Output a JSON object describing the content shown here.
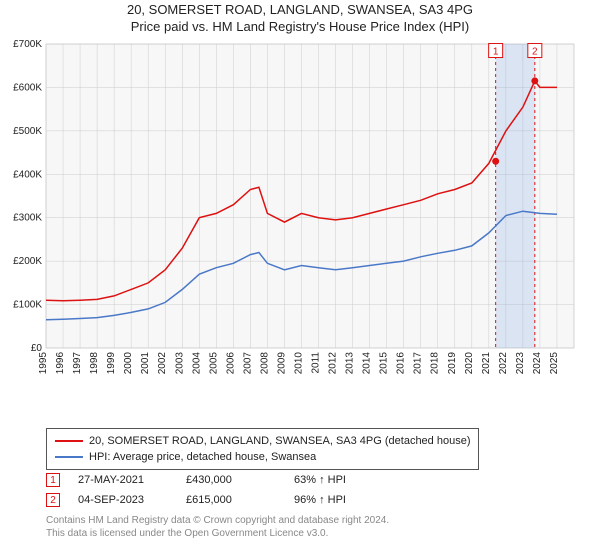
{
  "title": {
    "line1": "20, SOMERSET ROAD, LANGLAND, SWANSEA, SA3 4PG",
    "line2": "Price paid vs. HM Land Registry's House Price Index (HPI)",
    "fontsize": 13
  },
  "chart": {
    "type": "line",
    "background": "#f7f7f7",
    "grid_color": "#cccccc",
    "axis_text_color": "#222222",
    "xlim": [
      1995,
      2026
    ],
    "ylim": [
      0,
      700000
    ],
    "yticks": [
      0,
      100000,
      200000,
      300000,
      400000,
      500000,
      600000,
      700000
    ],
    "ytick_labels": [
      "£0",
      "£100K",
      "£200K",
      "£300K",
      "£400K",
      "£500K",
      "£600K",
      "£700K"
    ],
    "xticks": [
      1995,
      1996,
      1997,
      1998,
      1999,
      2000,
      2001,
      2002,
      2003,
      2004,
      2005,
      2006,
      2007,
      2008,
      2009,
      2010,
      2011,
      2012,
      2013,
      2014,
      2015,
      2016,
      2017,
      2018,
      2019,
      2020,
      2021,
      2022,
      2023,
      2024,
      2025
    ],
    "tick_fontsize": 10,
    "line_width": 1.5,
    "series": [
      {
        "key": "property",
        "color": "#dd1111",
        "label": "20, SOMERSET ROAD, LANGLAND, SWANSEA, SA3 4PG (detached house)",
        "data": [
          [
            1995,
            110000
          ],
          [
            1996,
            109000
          ],
          [
            1997,
            110000
          ],
          [
            1998,
            112000
          ],
          [
            1999,
            120000
          ],
          [
            2000,
            135000
          ],
          [
            2001,
            150000
          ],
          [
            2002,
            180000
          ],
          [
            2003,
            230000
          ],
          [
            2004,
            300000
          ],
          [
            2005,
            310000
          ],
          [
            2006,
            330000
          ],
          [
            2007,
            365000
          ],
          [
            2007.5,
            370000
          ],
          [
            2008,
            310000
          ],
          [
            2009,
            290000
          ],
          [
            2010,
            310000
          ],
          [
            2011,
            300000
          ],
          [
            2012,
            295000
          ],
          [
            2013,
            300000
          ],
          [
            2014,
            310000
          ],
          [
            2015,
            320000
          ],
          [
            2016,
            330000
          ],
          [
            2017,
            340000
          ],
          [
            2018,
            355000
          ],
          [
            2019,
            365000
          ],
          [
            2020,
            380000
          ],
          [
            2021,
            425000
          ],
          [
            2022,
            500000
          ],
          [
            2023,
            555000
          ],
          [
            2023.7,
            615000
          ],
          [
            2024,
            600000
          ],
          [
            2025,
            600000
          ]
        ]
      },
      {
        "key": "hpi",
        "color": "#4a78c8",
        "label": "HPI: Average price, detached house, Swansea",
        "data": [
          [
            1995,
            65000
          ],
          [
            1996,
            66000
          ],
          [
            1997,
            68000
          ],
          [
            1998,
            70000
          ],
          [
            1999,
            75000
          ],
          [
            2000,
            82000
          ],
          [
            2001,
            90000
          ],
          [
            2002,
            105000
          ],
          [
            2003,
            135000
          ],
          [
            2004,
            170000
          ],
          [
            2005,
            185000
          ],
          [
            2006,
            195000
          ],
          [
            2007,
            215000
          ],
          [
            2007.5,
            220000
          ],
          [
            2008,
            195000
          ],
          [
            2009,
            180000
          ],
          [
            2010,
            190000
          ],
          [
            2011,
            185000
          ],
          [
            2012,
            180000
          ],
          [
            2013,
            185000
          ],
          [
            2014,
            190000
          ],
          [
            2015,
            195000
          ],
          [
            2016,
            200000
          ],
          [
            2017,
            210000
          ],
          [
            2018,
            218000
          ],
          [
            2019,
            225000
          ],
          [
            2020,
            235000
          ],
          [
            2021,
            265000
          ],
          [
            2022,
            305000
          ],
          [
            2023,
            315000
          ],
          [
            2024,
            310000
          ],
          [
            2025,
            308000
          ]
        ]
      }
    ],
    "transaction_band": {
      "start": 2021.4,
      "end": 2023.7,
      "fill": "rgba(130,170,230,0.25)",
      "border": "#dd1111"
    },
    "transaction_markers": [
      {
        "num": "1",
        "x": 2021.4,
        "y": 430000
      },
      {
        "num": "2",
        "x": 2023.7,
        "y": 615000
      }
    ],
    "marker_box_stroke": "#dd1111",
    "marker_box_fill": "#ffffff",
    "marker_text_color": "#dd1111",
    "marker_label_top_y": 685000,
    "marker_fontsize": 10
  },
  "legend": {
    "property_label": "20, SOMERSET ROAD, LANGLAND, SWANSEA, SA3 4PG (detached house)",
    "hpi_label": "HPI: Average price, detached house, Swansea"
  },
  "transactions": [
    {
      "num": "1",
      "date": "27-MAY-2021",
      "price": "£430,000",
      "change": "63% ↑ HPI"
    },
    {
      "num": "2",
      "date": "04-SEP-2023",
      "price": "£615,000",
      "change": "96% ↑ HPI"
    }
  ],
  "copyright": {
    "line1": "Contains HM Land Registry data © Crown copyright and database right 2024.",
    "line2": "This data is licensed under the Open Government Licence v3.0."
  }
}
